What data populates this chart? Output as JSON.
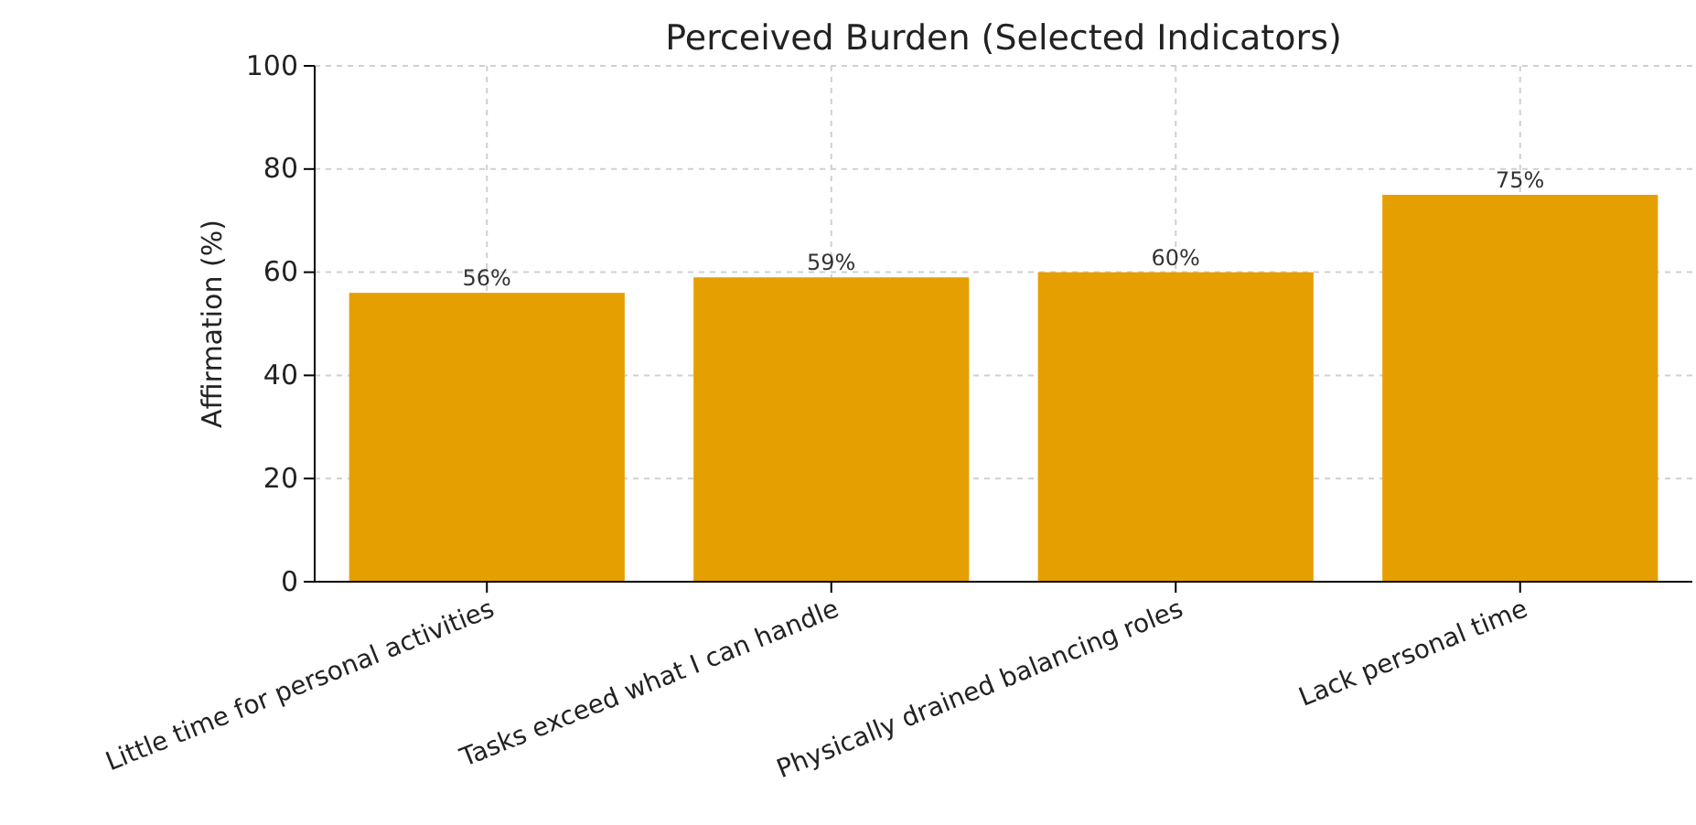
{
  "chart_data": {
    "type": "bar",
    "title": "Perceived Burden (Selected Indicators)",
    "ylabel": "Affirmation (%)",
    "categories": [
      "Little time for personal activities",
      "Tasks exceed what I can handle",
      "Physically drained balancing roles",
      "Lack personal time"
    ],
    "values": [
      56,
      59,
      60,
      75
    ],
    "value_labels": [
      "56%",
      "59%",
      "60%",
      "75%"
    ],
    "color": "#e69f00",
    "ylim": [
      0,
      100
    ],
    "yticks": [
      0,
      20,
      40,
      60,
      80,
      100
    ],
    "grid": true
  }
}
